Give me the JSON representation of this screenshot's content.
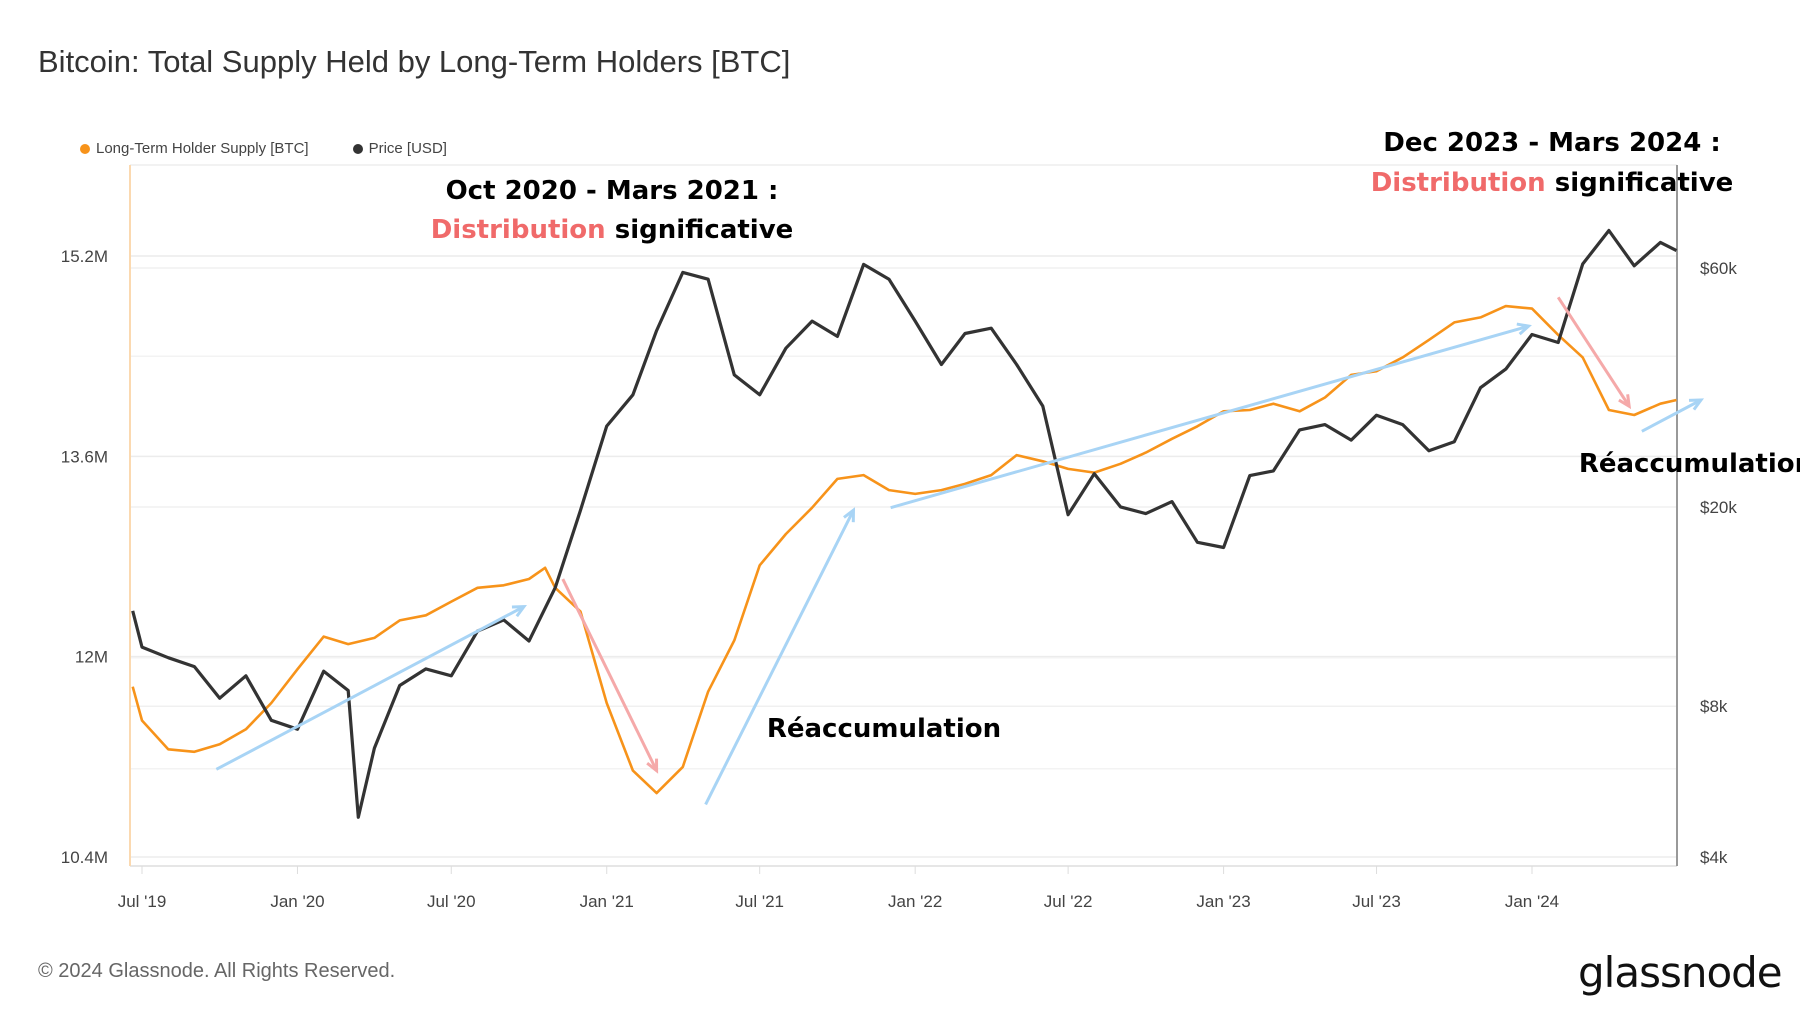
{
  "title": "Bitcoin: Total Supply Held by Long-Term Holders [BTC]",
  "legend": [
    {
      "label": "Long-Term Holder Supply [BTC]",
      "color": "#f7931a"
    },
    {
      "label": "Price [USD]",
      "color": "#333333"
    }
  ],
  "annotations": {
    "first_title": "Oct 2020 - Mars 2021 :",
    "first_red": "Distribution",
    "first_rest": "significative",
    "first_reacc": "Réaccumulation",
    "second_title": "Dec 2023 - Mars 2024 :",
    "second_red": "Distribution",
    "second_rest": "significative",
    "second_reacc": "Réaccumulation",
    "red_color": "#f06a6a",
    "arrow_blue": "#a8d4f5",
    "arrow_pink": "#f5a9a9"
  },
  "footer": "© 2024 Glassnode. All Rights Reserved.",
  "logo": "glassnode",
  "chart_data": {
    "type": "line",
    "title": "Bitcoin: Total Supply Held by Long-Term Holders [BTC]",
    "grid": true,
    "legend_position": "top-left",
    "x_ticks": [
      "Jul '19",
      "Jan '20",
      "Jul '20",
      "Jan '21",
      "Jul '21",
      "Jan '22",
      "Jul '22",
      "Jan '23",
      "Jul '23",
      "Jan '24"
    ],
    "x_tick_dates": [
      "2019-07-01",
      "2020-01-01",
      "2020-07-01",
      "2021-01-01",
      "2021-07-01",
      "2022-01-01",
      "2022-07-01",
      "2023-01-01",
      "2023-07-01",
      "2024-01-01"
    ],
    "xlim": [
      "2019-06-20",
      "2024-06-20"
    ],
    "y_left": {
      "ticks": [
        "15.2M",
        "13.6M",
        "12M",
        "10.4M"
      ],
      "tick_values": [
        15.2,
        13.6,
        12,
        10.4
      ],
      "range": [
        10.4,
        15.2
      ],
      "unit": "M BTC",
      "scale": "linear"
    },
    "y_right": {
      "ticks": [
        "$60k",
        "$20k",
        "$8k",
        "$4k"
      ],
      "tick_values": [
        60000,
        20000,
        8000,
        4000
      ],
      "range": [
        4000,
        60000
      ],
      "scale": "log"
    },
    "series": [
      {
        "name": "Long-Term Holder Supply [BTC]",
        "axis": "left",
        "color": "#f7931a",
        "points": [
          [
            "2019-06-20",
            11.76
          ],
          [
            "2019-07-01",
            11.49
          ],
          [
            "2019-08-01",
            11.26
          ],
          [
            "2019-09-01",
            11.24
          ],
          [
            "2019-10-01",
            11.3
          ],
          [
            "2019-11-01",
            11.42
          ],
          [
            "2019-12-01",
            11.63
          ],
          [
            "2020-01-01",
            11.9
          ],
          [
            "2020-02-01",
            12.16
          ],
          [
            "2020-03-01",
            12.1
          ],
          [
            "2020-04-01",
            12.15
          ],
          [
            "2020-05-01",
            12.29
          ],
          [
            "2020-06-01",
            12.33
          ],
          [
            "2020-07-01",
            12.44
          ],
          [
            "2020-08-01",
            12.55
          ],
          [
            "2020-09-01",
            12.57
          ],
          [
            "2020-10-01",
            12.62
          ],
          [
            "2020-10-20",
            12.71
          ],
          [
            "2020-11-01",
            12.55
          ],
          [
            "2020-12-01",
            12.36
          ],
          [
            "2021-01-01",
            11.63
          ],
          [
            "2021-02-01",
            11.09
          ],
          [
            "2021-03-01",
            10.91
          ],
          [
            "2021-04-01",
            11.12
          ],
          [
            "2021-05-01",
            11.72
          ],
          [
            "2021-06-01",
            12.13
          ],
          [
            "2021-07-01",
            12.73
          ],
          [
            "2021-08-01",
            12.98
          ],
          [
            "2021-09-01",
            13.19
          ],
          [
            "2021-10-01",
            13.42
          ],
          [
            "2021-11-01",
            13.45
          ],
          [
            "2021-12-01",
            13.33
          ],
          [
            "2022-01-01",
            13.3
          ],
          [
            "2022-02-01",
            13.33
          ],
          [
            "2022-03-01",
            13.38
          ],
          [
            "2022-04-01",
            13.45
          ],
          [
            "2022-05-01",
            13.61
          ],
          [
            "2022-06-01",
            13.56
          ],
          [
            "2022-07-01",
            13.5
          ],
          [
            "2022-08-01",
            13.47
          ],
          [
            "2022-09-01",
            13.54
          ],
          [
            "2022-10-01",
            13.63
          ],
          [
            "2022-11-01",
            13.74
          ],
          [
            "2022-12-01",
            13.84
          ],
          [
            "2023-01-01",
            13.96
          ],
          [
            "2023-02-01",
            13.97
          ],
          [
            "2023-03-01",
            14.02
          ],
          [
            "2023-04-01",
            13.96
          ],
          [
            "2023-05-01",
            14.07
          ],
          [
            "2023-06-01",
            14.25
          ],
          [
            "2023-07-01",
            14.28
          ],
          [
            "2023-08-01",
            14.39
          ],
          [
            "2023-09-01",
            14.53
          ],
          [
            "2023-10-01",
            14.67
          ],
          [
            "2023-11-01",
            14.71
          ],
          [
            "2023-12-01",
            14.8
          ],
          [
            "2024-01-01",
            14.78
          ],
          [
            "2024-02-01",
            14.57
          ],
          [
            "2024-03-01",
            14.39
          ],
          [
            "2024-04-01",
            13.97
          ],
          [
            "2024-05-01",
            13.93
          ],
          [
            "2024-06-01",
            14.02
          ],
          [
            "2024-06-20",
            14.05
          ]
        ]
      },
      {
        "name": "Price [USD]",
        "axis": "right",
        "color": "#333333",
        "points": [
          [
            "2019-06-20",
            12400
          ],
          [
            "2019-07-01",
            10500
          ],
          [
            "2019-08-01",
            10000
          ],
          [
            "2019-09-01",
            9600
          ],
          [
            "2019-10-01",
            8300
          ],
          [
            "2019-11-01",
            9200
          ],
          [
            "2019-12-01",
            7500
          ],
          [
            "2020-01-01",
            7200
          ],
          [
            "2020-02-01",
            9400
          ],
          [
            "2020-03-01",
            8600
          ],
          [
            "2020-03-13",
            4800
          ],
          [
            "2020-04-01",
            6600
          ],
          [
            "2020-05-01",
            8800
          ],
          [
            "2020-06-01",
            9500
          ],
          [
            "2020-07-01",
            9200
          ],
          [
            "2020-08-01",
            11300
          ],
          [
            "2020-09-01",
            11900
          ],
          [
            "2020-10-01",
            10800
          ],
          [
            "2020-11-01",
            13800
          ],
          [
            "2020-12-01",
            19700
          ],
          [
            "2021-01-01",
            29000
          ],
          [
            "2021-02-01",
            33500
          ],
          [
            "2021-03-01",
            45000
          ],
          [
            "2021-04-01",
            58800
          ],
          [
            "2021-05-01",
            57000
          ],
          [
            "2021-06-01",
            36700
          ],
          [
            "2021-07-01",
            33500
          ],
          [
            "2021-08-01",
            41500
          ],
          [
            "2021-09-01",
            47000
          ],
          [
            "2021-10-01",
            43800
          ],
          [
            "2021-11-01",
            61000
          ],
          [
            "2021-12-01",
            57000
          ],
          [
            "2022-01-01",
            47000
          ],
          [
            "2022-02-01",
            38500
          ],
          [
            "2022-03-01",
            44400
          ],
          [
            "2022-04-01",
            45500
          ],
          [
            "2022-05-01",
            38500
          ],
          [
            "2022-06-01",
            31800
          ],
          [
            "2022-07-01",
            19300
          ],
          [
            "2022-08-01",
            23300
          ],
          [
            "2022-09-01",
            20000
          ],
          [
            "2022-10-01",
            19400
          ],
          [
            "2022-11-01",
            20500
          ],
          [
            "2022-12-01",
            17000
          ],
          [
            "2023-01-01",
            16600
          ],
          [
            "2023-02-01",
            23100
          ],
          [
            "2023-03-01",
            23600
          ],
          [
            "2023-04-01",
            28500
          ],
          [
            "2023-05-01",
            29200
          ],
          [
            "2023-06-01",
            27200
          ],
          [
            "2023-07-01",
            30500
          ],
          [
            "2023-08-01",
            29200
          ],
          [
            "2023-09-01",
            25900
          ],
          [
            "2023-10-01",
            27000
          ],
          [
            "2023-11-01",
            34600
          ],
          [
            "2023-12-01",
            37700
          ],
          [
            "2024-01-01",
            44200
          ],
          [
            "2024-02-01",
            42600
          ],
          [
            "2024-03-01",
            61100
          ],
          [
            "2024-04-01",
            71300
          ],
          [
            "2024-05-01",
            60600
          ],
          [
            "2024-06-01",
            67500
          ],
          [
            "2024-06-20",
            65000
          ]
        ]
      }
    ],
    "arrows": [
      {
        "color": "blue",
        "from": [
          "2019-09-27",
          11.1
        ],
        "to": [
          "2020-09-25",
          12.4
        ]
      },
      {
        "color": "pink",
        "from": [
          "2020-11-10",
          12.62
        ],
        "to": [
          "2021-03-01",
          11.09
        ]
      },
      {
        "color": "blue",
        "from": [
          "2021-04-28",
          10.82
        ],
        "to": [
          "2021-10-20",
          13.17
        ]
      },
      {
        "color": "blue",
        "from": [
          "2021-12-03",
          13.19
        ],
        "to": [
          "2023-12-28",
          14.64
        ]
      },
      {
        "color": "pink",
        "from": [
          "2024-02-01",
          14.87
        ],
        "to": [
          "2024-04-25",
          14.0
        ]
      },
      {
        "color": "blue",
        "from": [
          "2024-05-10",
          13.8
        ],
        "to": [
          "2024-07-19",
          14.05
        ]
      }
    ]
  }
}
